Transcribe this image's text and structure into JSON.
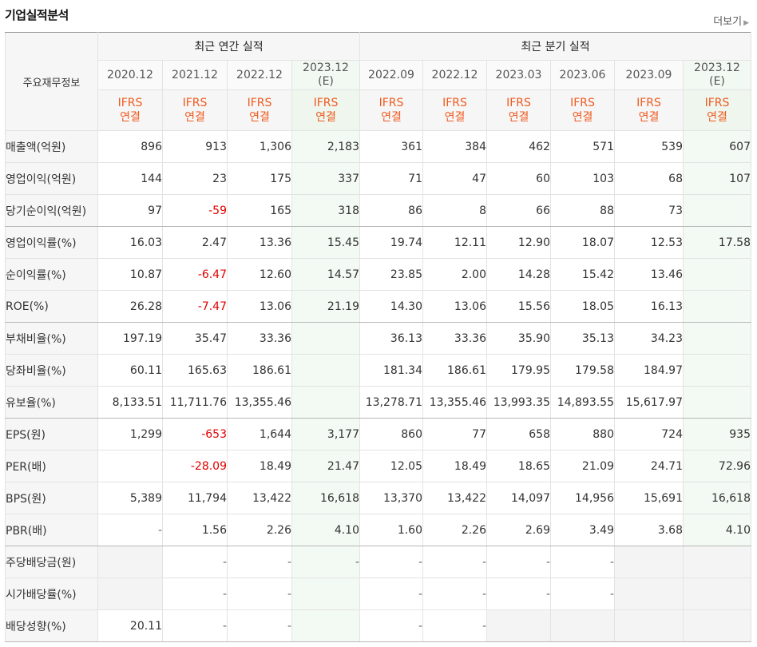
{
  "section": {
    "title": "기업실적분석",
    "more": "더보기",
    "more_arrow": "▶"
  },
  "header": {
    "main_label": "주요재무정보",
    "annual_label": "최근 연간 실적",
    "quarterly_label": "최근 분기 실적",
    "periods": [
      {
        "label": "2020.12",
        "sub": ""
      },
      {
        "label": "2021.12",
        "sub": ""
      },
      {
        "label": "2022.12",
        "sub": ""
      },
      {
        "label": "2023.12",
        "sub": "(E)"
      },
      {
        "label": "2022.09",
        "sub": ""
      },
      {
        "label": "2022.12",
        "sub": ""
      },
      {
        "label": "2023.03",
        "sub": ""
      },
      {
        "label": "2023.06",
        "sub": ""
      },
      {
        "label": "2023.09",
        "sub": ""
      },
      {
        "label": "2023.12",
        "sub": "(E)"
      }
    ],
    "ifrs": "IFRS",
    "consol": "연결"
  },
  "rows": [
    {
      "label": "매출액(억원)",
      "values": [
        "896",
        "913",
        "1,306",
        "2,183",
        "361",
        "384",
        "462",
        "571",
        "539",
        "607"
      ]
    },
    {
      "label": "영업이익(억원)",
      "values": [
        "144",
        "23",
        "175",
        "337",
        "71",
        "47",
        "60",
        "103",
        "68",
        "107"
      ]
    },
    {
      "label": "당기순이익(억원)",
      "values": [
        "97",
        "-59",
        "165",
        "318",
        "86",
        "8",
        "66",
        "88",
        "73",
        ""
      ]
    },
    {
      "label": "영업이익률(%)",
      "values": [
        "16.03",
        "2.47",
        "13.36",
        "15.45",
        "19.74",
        "12.11",
        "12.90",
        "18.07",
        "12.53",
        "17.58"
      ]
    },
    {
      "label": "순이익률(%)",
      "values": [
        "10.87",
        "-6.47",
        "12.60",
        "14.57",
        "23.85",
        "2.00",
        "14.28",
        "15.42",
        "13.46",
        ""
      ]
    },
    {
      "label": "ROE(%)",
      "values": [
        "26.28",
        "-7.47",
        "13.06",
        "21.19",
        "14.30",
        "13.06",
        "15.56",
        "18.05",
        "16.13",
        ""
      ]
    },
    {
      "label": "부채비율(%)",
      "values": [
        "197.19",
        "35.47",
        "33.36",
        "",
        "36.13",
        "33.36",
        "35.90",
        "35.13",
        "34.23",
        ""
      ]
    },
    {
      "label": "당좌비율(%)",
      "values": [
        "60.11",
        "165.63",
        "186.61",
        "",
        "181.34",
        "186.61",
        "179.95",
        "179.58",
        "184.97",
        ""
      ]
    },
    {
      "label": "유보율(%)",
      "values": [
        "8,133.51",
        "11,711.76",
        "13,355.46",
        "",
        "13,278.71",
        "13,355.46",
        "13,993.35",
        "14,893.55",
        "15,617.97",
        ""
      ]
    },
    {
      "label": "EPS(원)",
      "values": [
        "1,299",
        "-653",
        "1,644",
        "3,177",
        "860",
        "77",
        "658",
        "880",
        "724",
        "935"
      ]
    },
    {
      "label": "PER(배)",
      "values": [
        "",
        "-28.09",
        "18.49",
        "21.47",
        "12.05",
        "18.49",
        "18.65",
        "21.09",
        "24.71",
        "72.96"
      ]
    },
    {
      "label": "BPS(원)",
      "values": [
        "5,389",
        "11,794",
        "13,422",
        "16,618",
        "13,370",
        "13,422",
        "14,097",
        "14,956",
        "15,691",
        "16,618"
      ]
    },
    {
      "label": "PBR(배)",
      "values": [
        "-",
        "1.56",
        "2.26",
        "4.10",
        "1.60",
        "2.26",
        "2.69",
        "3.49",
        "3.68",
        "4.10"
      ]
    },
    {
      "label": "주당배당금(원)",
      "values": [
        "",
        "-",
        "-",
        "-",
        "-",
        "-",
        "-",
        "-",
        "",
        ""
      ]
    },
    {
      "label": "시가배당률(%)",
      "values": [
        "",
        "-",
        "-",
        "",
        "-",
        "-",
        "-",
        "-",
        "",
        ""
      ]
    },
    {
      "label": "배당성향(%)",
      "values": [
        "20.11",
        "-",
        "-",
        "",
        "-",
        "-",
        "",
        "",
        "",
        ""
      ]
    }
  ]
}
